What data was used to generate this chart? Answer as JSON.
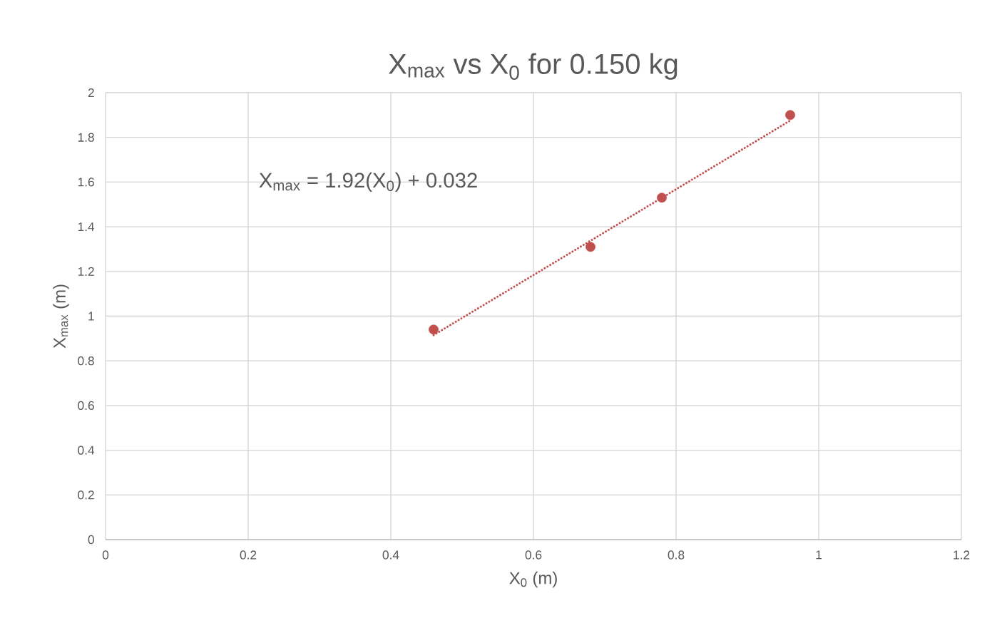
{
  "chart_data": {
    "type": "scatter",
    "title": "X$_{max}$ vs X$_{0}$ for 0.150 kg",
    "xlabel": "X$_{0}$ (m)",
    "ylabel": "X$_{max}$ (m)",
    "annotations": [
      "X$_{max}$ = 1.92(X$_{0}$) + 0.032"
    ],
    "series": [
      {
        "color": "#c0504d",
        "marker": "circle",
        "x": [
          0.46,
          0.68,
          0.78,
          0.96
        ],
        "values": [
          0.94,
          1.31,
          1.53,
          1.9
        ]
      },
      {
        "type": "line",
        "color": "#c0504d",
        "line_style": "dotted",
        "marker": "none",
        "x": [
          0.46,
          0.96
        ],
        "values": [
          0.915,
          1.875
        ]
      }
    ],
    "xlim": [
      0,
      1.2
    ],
    "ylim": [
      0,
      2
    ],
    "xticks": [
      0,
      0.2,
      0.4,
      0.6,
      0.8,
      1,
      1.2
    ],
    "yticks": [
      0,
      0.2,
      0.4,
      0.6,
      0.8,
      1,
      1.2,
      1.4,
      1.6,
      1.8,
      2
    ],
    "grid": true
  }
}
